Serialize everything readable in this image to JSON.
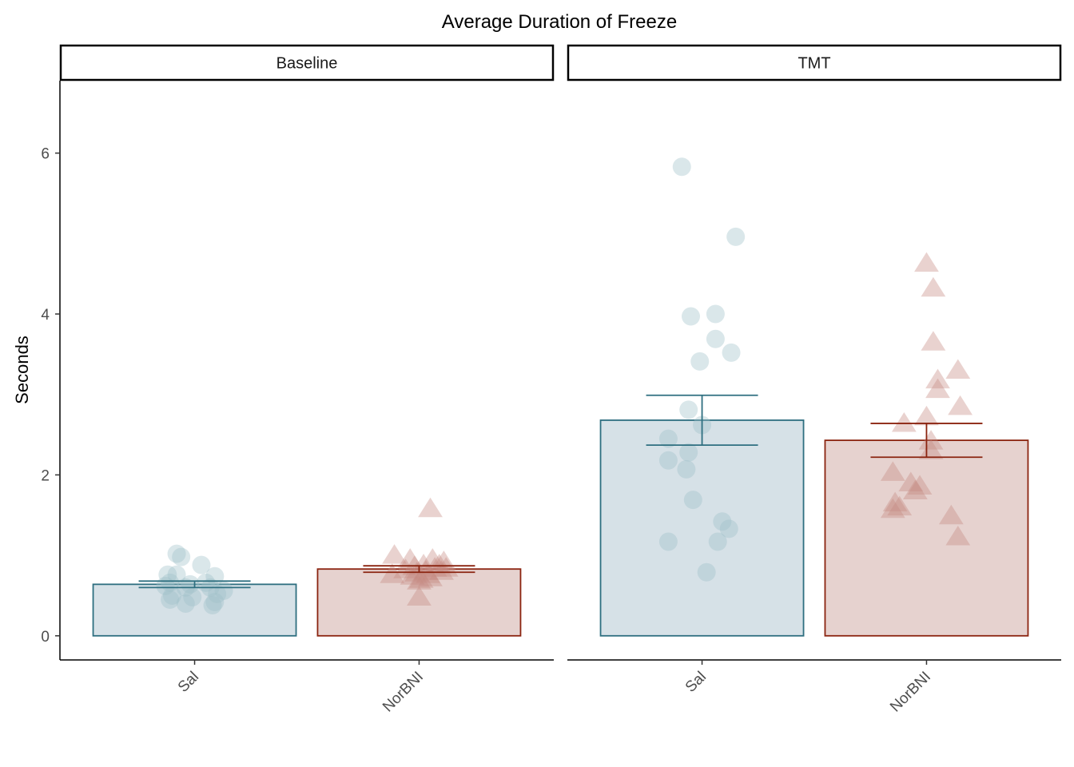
{
  "chart_data": {
    "type": "bar",
    "title": "Average Duration of Freeze",
    "ylabel": "Seconds",
    "xlabel": "",
    "ylim": [
      -0.3,
      6.9
    ],
    "yticks": [
      0,
      2,
      4,
      6
    ],
    "grid": false,
    "legend": "none",
    "colors": {
      "Sal": {
        "stroke": "#2e6f80",
        "fill": "#d6e1e7",
        "point": "#9ebfc8"
      },
      "NorBNI": {
        "stroke": "#8b2410",
        "fill": "#e6d2cf",
        "point": "#c48a80"
      }
    },
    "panels": [
      {
        "name": "Baseline",
        "categories": [
          "Sal",
          "NorBNI"
        ],
        "bars": [
          {
            "category": "Sal",
            "mean": 0.64,
            "se_low": 0.6,
            "se_high": 0.68,
            "shape": "circle",
            "points": [
              [
                -0.08,
                1.02
              ],
              [
                -0.06,
                0.98
              ],
              [
                0.03,
                0.88
              ],
              [
                -0.12,
                0.76
              ],
              [
                -0.08,
                0.76
              ],
              [
                0.09,
                0.74
              ],
              [
                -0.11,
                0.66
              ],
              [
                -0.02,
                0.64
              ],
              [
                0.05,
                0.66
              ],
              [
                -0.13,
                0.62
              ],
              [
                -0.04,
                0.6
              ],
              [
                0.07,
                0.6
              ],
              [
                0.13,
                0.56
              ],
              [
                0.1,
                0.52
              ],
              [
                -0.1,
                0.5
              ],
              [
                -0.01,
                0.48
              ],
              [
                -0.11,
                0.45
              ],
              [
                0.09,
                0.42
              ],
              [
                -0.04,
                0.4
              ],
              [
                0.08,
                0.38
              ]
            ]
          },
          {
            "category": "NorBNI",
            "mean": 0.83,
            "se_low": 0.79,
            "se_high": 0.87,
            "shape": "triangle",
            "points": [
              [
                0.05,
                1.58
              ],
              [
                -0.11,
                1.0
              ],
              [
                -0.04,
                0.95
              ],
              [
                0.06,
                0.95
              ],
              [
                0.11,
                0.92
              ],
              [
                0.09,
                0.88
              ],
              [
                0.02,
                0.88
              ],
              [
                -0.02,
                0.86
              ],
              [
                0.07,
                0.84
              ],
              [
                0.12,
                0.84
              ],
              [
                -0.06,
                0.82
              ],
              [
                0.03,
                0.8
              ],
              [
                0.1,
                0.8
              ],
              [
                -0.01,
                0.78
              ],
              [
                0.04,
                0.76
              ],
              [
                -0.12,
                0.76
              ],
              [
                -0.03,
                0.74
              ],
              [
                0.05,
                0.72
              ],
              [
                0.01,
                0.7
              ],
              [
                0.0,
                0.68
              ],
              [
                0.0,
                0.48
              ]
            ]
          }
        ]
      },
      {
        "name": "TMT",
        "categories": [
          "Sal",
          "NorBNI"
        ],
        "bars": [
          {
            "category": "Sal",
            "mean": 2.68,
            "se_low": 2.37,
            "se_high": 2.99,
            "shape": "circle",
            "points": [
              [
                -0.09,
                5.83
              ],
              [
                0.15,
                4.96
              ],
              [
                0.06,
                4.0
              ],
              [
                -0.05,
                3.97
              ],
              [
                0.06,
                3.69
              ],
              [
                0.13,
                3.52
              ],
              [
                -0.01,
                3.41
              ],
              [
                -0.06,
                2.81
              ],
              [
                0.0,
                2.62
              ],
              [
                -0.15,
                2.45
              ],
              [
                -0.06,
                2.28
              ],
              [
                -0.15,
                2.18
              ],
              [
                -0.07,
                2.07
              ],
              [
                -0.04,
                1.69
              ],
              [
                0.09,
                1.42
              ],
              [
                0.12,
                1.33
              ],
              [
                -0.15,
                1.17
              ],
              [
                0.07,
                1.17
              ],
              [
                0.02,
                0.79
              ]
            ]
          },
          {
            "category": "NorBNI",
            "mean": 2.43,
            "se_low": 2.22,
            "se_high": 2.64,
            "shape": "triangle",
            "points": [
              [
                0.0,
                4.63
              ],
              [
                0.03,
                4.32
              ],
              [
                0.03,
                3.65
              ],
              [
                0.14,
                3.3
              ],
              [
                0.05,
                3.18
              ],
              [
                0.05,
                3.06
              ],
              [
                0.15,
                2.85
              ],
              [
                0.0,
                2.72
              ],
              [
                -0.1,
                2.64
              ],
              [
                0.02,
                2.42
              ],
              [
                0.02,
                2.3
              ],
              [
                -0.15,
                2.03
              ],
              [
                -0.07,
                1.9
              ],
              [
                -0.03,
                1.86
              ],
              [
                -0.05,
                1.8
              ],
              [
                -0.14,
                1.65
              ],
              [
                -0.12,
                1.6
              ],
              [
                -0.15,
                1.57
              ],
              [
                0.11,
                1.49
              ],
              [
                0.14,
                1.23
              ]
            ]
          }
        ]
      }
    ]
  }
}
